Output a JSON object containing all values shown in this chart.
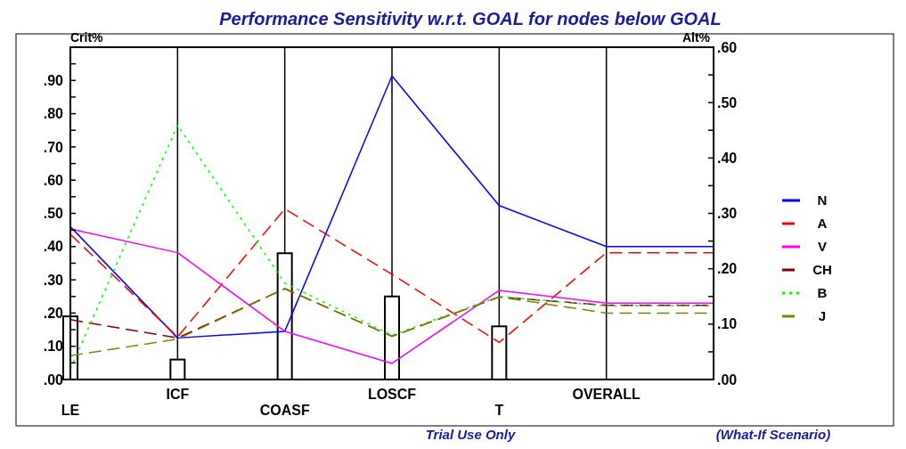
{
  "chart_data": {
    "type": "line",
    "title": "Performance Sensitivity w.r.t. GOAL for nodes below GOAL",
    "categories": [
      "LE",
      "ICF",
      "COASF",
      "LOSCF",
      "T",
      "OVERALL",
      null
    ],
    "ylabel": "Crit%",
    "y2label": "Alt%",
    "ylim": [
      0,
      1
    ],
    "yticks": [
      {
        "value": 0,
        "label": ".00"
      },
      {
        "value": 0.05,
        "label": null
      },
      {
        "value": 0.1,
        "label": ".10"
      },
      {
        "value": 0.15,
        "label": null
      },
      {
        "value": 0.2,
        "label": ".20"
      },
      {
        "value": 0.25,
        "label": null
      },
      {
        "value": 0.3,
        "label": ".30"
      },
      {
        "value": 0.35,
        "label": null
      },
      {
        "value": 0.4,
        "label": ".40"
      },
      {
        "value": 0.45,
        "label": null
      },
      {
        "value": 0.5,
        "label": ".50"
      },
      {
        "value": 0.55,
        "label": null
      },
      {
        "value": 0.6,
        "label": ".60"
      },
      {
        "value": 0.65,
        "label": null
      },
      {
        "value": 0.7,
        "label": ".70"
      },
      {
        "value": 0.75,
        "label": null
      },
      {
        "value": 0.8,
        "label": ".80"
      },
      {
        "value": 0.85,
        "label": null
      },
      {
        "value": 0.9,
        "label": ".90"
      },
      {
        "value": 0.95,
        "label": null
      }
    ],
    "y2lim": [
      0,
      0.6
    ],
    "y2ticks": [
      {
        "value": 0,
        "label": ".00"
      },
      {
        "value": 0.05,
        "label": null
      },
      {
        "value": 0.1,
        "label": ".10"
      },
      {
        "value": 0.15,
        "label": null
      },
      {
        "value": 0.2,
        "label": ".20"
      },
      {
        "value": 0.25,
        "label": null
      },
      {
        "value": 0.3,
        "label": ".30"
      },
      {
        "value": 0.35,
        "label": null
      },
      {
        "value": 0.4,
        "label": ".40"
      },
      {
        "value": 0.45,
        "label": null
      },
      {
        "value": 0.5,
        "label": ".50"
      },
      {
        "value": 0.55,
        "label": null
      },
      {
        "value": 0.6,
        "label": ".60"
      }
    ],
    "grid": "x",
    "legend": "right",
    "series": [
      {
        "type": "bar",
        "color": "#ffffff",
        "values": [
          0.19,
          0.06,
          0.38,
          0.25,
          0.16,
          null,
          null
        ]
      },
      {
        "name": "N",
        "axis": "y2",
        "color": "#0000ff",
        "line_style": "solid",
        "values": [
          0.276,
          0.075,
          0.087,
          0.548,
          0.314,
          0.24,
          0.24
        ]
      },
      {
        "name": "A",
        "axis": "y2",
        "color": "#ff0000",
        "line_style": "dashed",
        "values": [
          0.262,
          0.077,
          0.308,
          0.19,
          0.067,
          0.229,
          0.229
        ]
      },
      {
        "name": "V",
        "axis": "y2",
        "color": "#ff00ff",
        "line_style": "solid",
        "values": [
          0.272,
          0.229,
          0.087,
          0.029,
          0.161,
          0.138,
          0.138
        ]
      },
      {
        "name": "CH",
        "axis": "y2",
        "color": "#800000",
        "line_style": "dashed",
        "values": [
          0.108,
          0.075,
          0.164,
          0.078,
          0.149,
          0.134,
          0.134
        ]
      },
      {
        "name": "B",
        "axis": "y2",
        "color": "#00ff00",
        "line_style": "dotted",
        "values": [
          0.019,
          0.459,
          0.174,
          0.08,
          0.15,
          0.133,
          0.133
        ]
      },
      {
        "name": "J",
        "axis": "y2",
        "color": "#808000",
        "line_style": "dashed",
        "values": [
          0.043,
          0.073,
          0.164,
          0.078,
          0.149,
          0.12,
          0.12
        ]
      }
    ],
    "annotations": [
      "Trial Use Only",
      "(What-If Scenario)"
    ]
  }
}
